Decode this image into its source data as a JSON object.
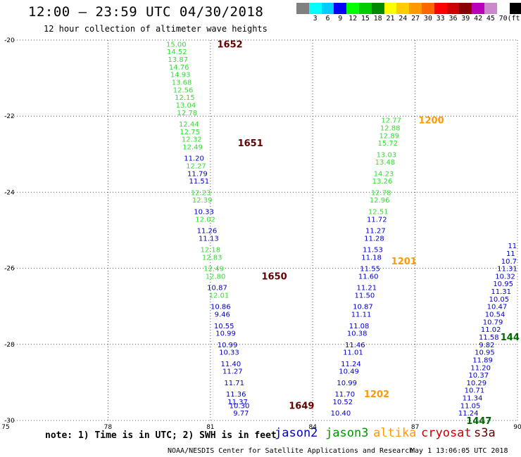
{
  "header": {
    "title": "12:00 – 23:59 UTC 04/30/2018",
    "subtitle": "12 hour collection of altimeter wave heights"
  },
  "legend": {
    "unit": "(ft)",
    "colors": [
      "#808080",
      "#00ffff",
      "#00ccff",
      "#0000ff",
      "#00ff00",
      "#00cc00",
      "#008800",
      "#ffff00",
      "#ffcc00",
      "#ff9900",
      "#ff6600",
      "#ff0000",
      "#cc0000",
      "#880000",
      "#bb00bb",
      "#cc88cc",
      "#ffffff",
      "#000000"
    ],
    "labels": [
      "3",
      "6",
      "9",
      "12",
      "15",
      "18",
      "21",
      "24",
      "27",
      "30",
      "33",
      "36",
      "39",
      "42",
      "45",
      "70"
    ]
  },
  "chart_data": {
    "type": "scatter",
    "xlim": [
      75,
      90
    ],
    "ylim": [
      -30,
      -20
    ],
    "x_ticks": [
      "75",
      "78",
      "81",
      "84",
      "87",
      "90"
    ],
    "y_ticks": [
      "-20",
      "-22",
      "-24",
      "-26",
      "-28",
      "-30"
    ],
    "grid": true,
    "colors": {
      "jason2": "#0000cc",
      "jason3": "#33dd33",
      "altika": "#ff9900",
      "s3a": "#660000",
      "s3a_green": "#006600"
    },
    "tracks": [
      {
        "id": "track-a",
        "points": [
          {
            "x": 80.0,
            "y": -20.1,
            "v": "15.00",
            "c": "jason3"
          },
          {
            "x": 80.02,
            "y": -20.3,
            "v": "14.52",
            "c": "jason3"
          },
          {
            "x": 80.05,
            "y": -20.5,
            "v": "13.87",
            "c": "jason3"
          },
          {
            "x": 80.08,
            "y": -20.7,
            "v": "14.76",
            "c": "jason3"
          },
          {
            "x": 80.12,
            "y": -20.9,
            "v": "14.93",
            "c": "jason3"
          },
          {
            "x": 80.16,
            "y": -21.1,
            "v": "13.68",
            "c": "jason3"
          },
          {
            "x": 80.2,
            "y": -21.3,
            "v": "12.56",
            "c": "jason3"
          },
          {
            "x": 80.25,
            "y": -21.5,
            "v": "12.15",
            "c": "jason3"
          },
          {
            "x": 80.28,
            "y": -21.7,
            "v": "13.04",
            "c": "jason3"
          },
          {
            "x": 80.32,
            "y": -21.9,
            "v": "12.78",
            "c": "jason3"
          },
          {
            "x": 80.37,
            "y": -22.2,
            "v": "12.44",
            "c": "jason3"
          },
          {
            "x": 80.4,
            "y": -22.4,
            "v": "12.75",
            "c": "jason3"
          },
          {
            "x": 80.45,
            "y": -22.6,
            "v": "12.32",
            "c": "jason3"
          },
          {
            "x": 80.48,
            "y": -22.8,
            "v": "12.49",
            "c": "jason3"
          },
          {
            "x": 80.52,
            "y": -23.1,
            "v": "11.20",
            "c": "jason2"
          },
          {
            "x": 80.58,
            "y": -23.3,
            "v": "12.27",
            "c": "jason3"
          },
          {
            "x": 80.62,
            "y": -23.5,
            "v": "11.79",
            "c": "jason2"
          },
          {
            "x": 80.67,
            "y": -23.7,
            "v": "11.51",
            "c": "jason2"
          },
          {
            "x": 80.72,
            "y": -24.0,
            "v": "12.23",
            "c": "jason3"
          },
          {
            "x": 80.76,
            "y": -24.2,
            "v": "12.39",
            "c": "jason3"
          },
          {
            "x": 80.81,
            "y": -24.5,
            "v": "10.33",
            "c": "jason2"
          },
          {
            "x": 80.85,
            "y": -24.7,
            "v": "12.02",
            "c": "jason3"
          },
          {
            "x": 80.9,
            "y": -25.0,
            "v": "11.26",
            "c": "jason2"
          },
          {
            "x": 80.95,
            "y": -25.2,
            "v": "11.13",
            "c": "jason2"
          },
          {
            "x": 81.0,
            "y": -25.5,
            "v": "12.18",
            "c": "jason3"
          },
          {
            "x": 81.05,
            "y": -25.7,
            "v": "12.83",
            "c": "jason3"
          },
          {
            "x": 81.1,
            "y": -26.0,
            "v": "12.49",
            "c": "jason3"
          },
          {
            "x": 81.15,
            "y": -26.2,
            "v": "12.80",
            "c": "jason3"
          },
          {
            "x": 81.2,
            "y": -26.5,
            "v": "10.87",
            "c": "jason2"
          },
          {
            "x": 81.25,
            "y": -26.7,
            "v": "12.01",
            "c": "jason3"
          },
          {
            "x": 81.3,
            "y": -27.0,
            "v": "10.86",
            "c": "jason2"
          },
          {
            "x": 81.35,
            "y": -27.2,
            "v": "9.46",
            "c": "jason2"
          },
          {
            "x": 81.4,
            "y": -27.5,
            "v": "10.55",
            "c": "jason2"
          },
          {
            "x": 81.45,
            "y": -27.7,
            "v": "10.99",
            "c": "jason2"
          },
          {
            "x": 81.5,
            "y": -28.0,
            "v": "10.99",
            "c": "jason2"
          },
          {
            "x": 81.55,
            "y": -28.2,
            "v": "10.33",
            "c": "jason2"
          },
          {
            "x": 81.6,
            "y": -28.5,
            "v": "11.40",
            "c": "jason2"
          },
          {
            "x": 81.65,
            "y": -28.7,
            "v": "11.27",
            "c": "jason2"
          },
          {
            "x": 81.7,
            "y": -29.0,
            "v": "11.71",
            "c": "jason2"
          },
          {
            "x": 81.75,
            "y": -29.3,
            "v": "11.36",
            "c": "jason2"
          },
          {
            "x": 81.8,
            "y": -29.5,
            "v": "11.37",
            "c": "jason2"
          },
          {
            "x": 81.85,
            "y": -29.6,
            "v": "10.30",
            "c": "jason2"
          },
          {
            "x": 81.9,
            "y": -29.8,
            "v": "9.77",
            "c": "jason2"
          }
        ]
      },
      {
        "id": "track-b",
        "points": [
          {
            "x": 86.3,
            "y": -22.1,
            "v": "12.77",
            "c": "jason3"
          },
          {
            "x": 86.27,
            "y": -22.3,
            "v": "12.88",
            "c": "jason3"
          },
          {
            "x": 86.24,
            "y": -22.5,
            "v": "12.89",
            "c": "jason3"
          },
          {
            "x": 86.2,
            "y": -22.7,
            "v": "15.72",
            "c": "jason3"
          },
          {
            "x": 86.16,
            "y": -23.0,
            "v": "13.03",
            "c": "jason3"
          },
          {
            "x": 86.12,
            "y": -23.2,
            "v": "13.48",
            "c": "jason3"
          },
          {
            "x": 86.08,
            "y": -23.5,
            "v": "14.23",
            "c": "jason3"
          },
          {
            "x": 86.04,
            "y": -23.7,
            "v": "13.26",
            "c": "jason3"
          },
          {
            "x": 86.0,
            "y": -24.0,
            "v": "12.78",
            "c": "jason3"
          },
          {
            "x": 85.96,
            "y": -24.2,
            "v": "12.96",
            "c": "jason3"
          },
          {
            "x": 85.92,
            "y": -24.5,
            "v": "12.51",
            "c": "jason3"
          },
          {
            "x": 85.88,
            "y": -24.7,
            "v": "11.72",
            "c": "jason2"
          },
          {
            "x": 85.84,
            "y": -25.0,
            "v": "11.27",
            "c": "jason2"
          },
          {
            "x": 85.8,
            "y": -25.2,
            "v": "11.28",
            "c": "jason2"
          },
          {
            "x": 85.76,
            "y": -25.5,
            "v": "11.53",
            "c": "jason2"
          },
          {
            "x": 85.72,
            "y": -25.7,
            "v": "11.18",
            "c": "jason2"
          },
          {
            "x": 85.68,
            "y": -26.0,
            "v": "11.55",
            "c": "jason2"
          },
          {
            "x": 85.63,
            "y": -26.2,
            "v": "11.60",
            "c": "jason2"
          },
          {
            "x": 85.58,
            "y": -26.5,
            "v": "11.21",
            "c": "jason2"
          },
          {
            "x": 85.52,
            "y": -26.7,
            "v": "11.50",
            "c": "jason2"
          },
          {
            "x": 85.47,
            "y": -27.0,
            "v": "10.87",
            "c": "jason2"
          },
          {
            "x": 85.42,
            "y": -27.2,
            "v": "11.11",
            "c": "jason2"
          },
          {
            "x": 85.36,
            "y": -27.5,
            "v": "11.08",
            "c": "jason2"
          },
          {
            "x": 85.3,
            "y": -27.7,
            "v": "10.38",
            "c": "jason2"
          },
          {
            "x": 85.24,
            "y": -28.0,
            "v": "11.46",
            "c": "jason2"
          },
          {
            "x": 85.18,
            "y": -28.2,
            "v": "11.01",
            "c": "jason2"
          },
          {
            "x": 85.12,
            "y": -28.5,
            "v": "11.24",
            "c": "jason2"
          },
          {
            "x": 85.06,
            "y": -28.7,
            "v": "10.49",
            "c": "jason2"
          },
          {
            "x": 85.0,
            "y": -29.0,
            "v": "10.99",
            "c": "jason2"
          },
          {
            "x": 84.94,
            "y": -29.3,
            "v": "11.70",
            "c": "jason2"
          },
          {
            "x": 84.88,
            "y": -29.5,
            "v": "10.52",
            "c": "jason2"
          },
          {
            "x": 84.82,
            "y": -29.8,
            "v": "10.40",
            "c": "jason2"
          }
        ]
      },
      {
        "id": "track-c",
        "points": [
          {
            "x": 89.85,
            "y": -25.4,
            "v": "11",
            "c": "jason2"
          },
          {
            "x": 89.8,
            "y": -25.6,
            "v": "11",
            "c": "jason2"
          },
          {
            "x": 89.75,
            "y": -25.8,
            "v": "10.7",
            "c": "jason2"
          },
          {
            "x": 89.7,
            "y": -26.0,
            "v": "11.31",
            "c": "jason2"
          },
          {
            "x": 89.64,
            "y": -26.2,
            "v": "10.32",
            "c": "jason2"
          },
          {
            "x": 89.58,
            "y": -26.4,
            "v": "10.95",
            "c": "jason2"
          },
          {
            "x": 89.52,
            "y": -26.6,
            "v": "11.31",
            "c": "jason2"
          },
          {
            "x": 89.46,
            "y": -26.8,
            "v": "10.05",
            "c": "jason2"
          },
          {
            "x": 89.4,
            "y": -27.0,
            "v": "10.47",
            "c": "jason2"
          },
          {
            "x": 89.34,
            "y": -27.2,
            "v": "10.54",
            "c": "jason2"
          },
          {
            "x": 89.28,
            "y": -27.4,
            "v": "10.79",
            "c": "jason2"
          },
          {
            "x": 89.22,
            "y": -27.6,
            "v": "11.02",
            "c": "jason2"
          },
          {
            "x": 89.16,
            "y": -27.8,
            "v": "11.58",
            "c": "jason2"
          },
          {
            "x": 89.1,
            "y": -28.0,
            "v": "9.82",
            "c": "jason2"
          },
          {
            "x": 89.04,
            "y": -28.2,
            "v": "10.95",
            "c": "jason2"
          },
          {
            "x": 88.98,
            "y": -28.4,
            "v": "11.89",
            "c": "jason2"
          },
          {
            "x": 88.92,
            "y": -28.6,
            "v": "11.20",
            "c": "jason2"
          },
          {
            "x": 88.86,
            "y": -28.8,
            "v": "10.37",
            "c": "jason2"
          },
          {
            "x": 88.8,
            "y": -29.0,
            "v": "10.29",
            "c": "jason2"
          },
          {
            "x": 88.74,
            "y": -29.2,
            "v": "10.71",
            "c": "jason2"
          },
          {
            "x": 88.68,
            "y": -29.4,
            "v": "11.34",
            "c": "jason2"
          },
          {
            "x": 88.62,
            "y": -29.6,
            "v": "11.05",
            "c": "jason2"
          },
          {
            "x": 88.56,
            "y": -29.8,
            "v": "11.24",
            "c": "jason2"
          }
        ]
      }
    ],
    "time_markers": [
      {
        "x": 81.2,
        "y": -20.1,
        "t": "1652",
        "c": "s3a"
      },
      {
        "x": 81.8,
        "y": -22.7,
        "t": "1651",
        "c": "s3a"
      },
      {
        "x": 82.5,
        "y": -26.2,
        "t": "1650",
        "c": "s3a"
      },
      {
        "x": 83.3,
        "y": -29.6,
        "t": "1649",
        "c": "s3a"
      },
      {
        "x": 87.1,
        "y": -22.1,
        "t": "1200",
        "c": "altika"
      },
      {
        "x": 86.3,
        "y": -25.8,
        "t": "1201",
        "c": "altika"
      },
      {
        "x": 85.5,
        "y": -29.3,
        "t": "1202",
        "c": "altika"
      },
      {
        "x": 89.5,
        "y": -27.8,
        "t": "144",
        "c": "s3a_green"
      },
      {
        "x": 88.5,
        "y": -30.0,
        "t": "1447",
        "c": "s3a_green"
      }
    ]
  },
  "footer": {
    "note": "note: 1) Time is in UTC; 2) SWH is in feet",
    "satellites": {
      "jason2": "jason2",
      "jason3": "jason3",
      "altika": "altika",
      "cryosat": "cryosat",
      "s3a": "s3a"
    },
    "credit": "NOAA/NESDIS Center for Satellite Applications and Research",
    "timestamp": "May  1 13:06:05 UTC 2018"
  }
}
